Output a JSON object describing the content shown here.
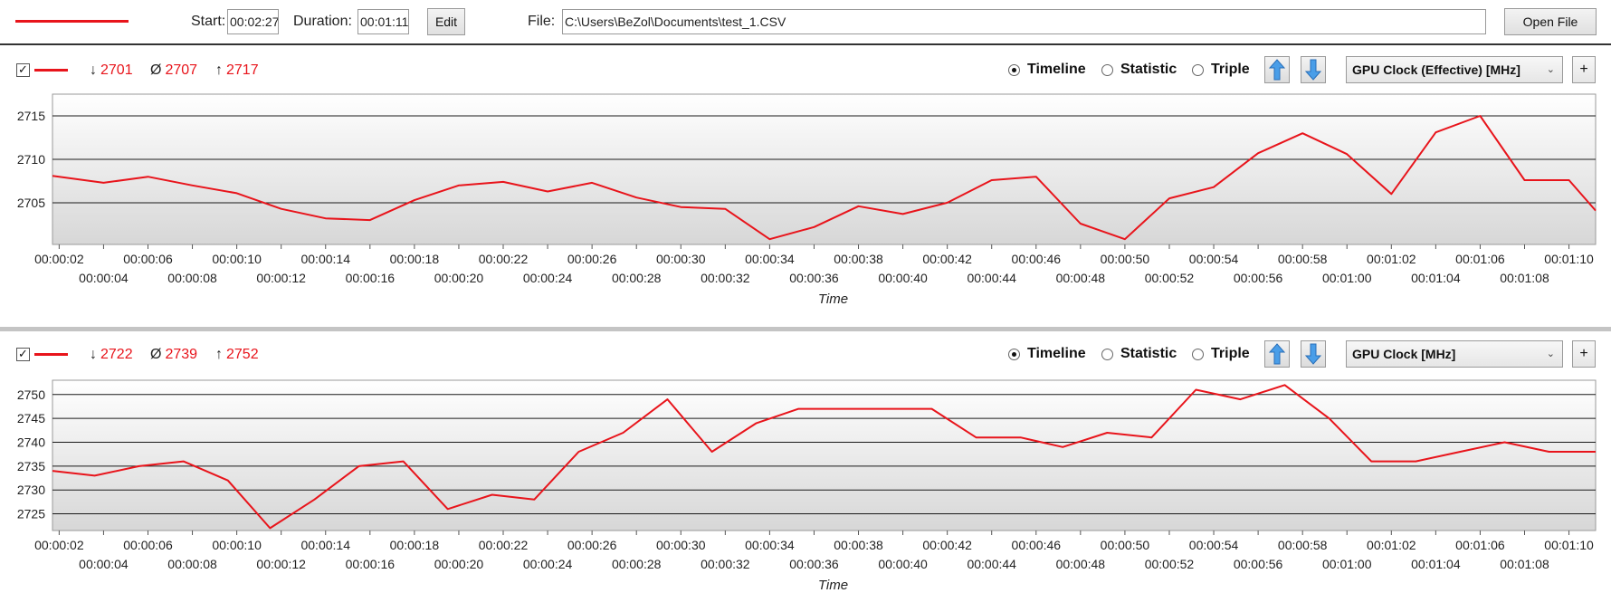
{
  "toolbar": {
    "start_label": "Start:",
    "start_value": "00:02:27",
    "duration_label": "Duration:",
    "duration_value": "00:01:11",
    "edit_label": "Edit",
    "file_label": "File:",
    "file_value": "C:\\Users\\BeZol\\Documents\\test_1.CSV",
    "open_file_label": "Open File"
  },
  "colors": {
    "series": "#e8141b",
    "grid": "#1a1a1a"
  },
  "icons": [
    "checkbox-checked-icon",
    "arrow-up-icon",
    "arrow-down-icon",
    "chevron-down-icon",
    "plus-icon"
  ],
  "panels": [
    {
      "checked": "✓",
      "min_symbol": "↓",
      "min": "2701",
      "avg_symbol": "Ø",
      "avg": "2707",
      "max_symbol": "↑",
      "max": "2717",
      "modes": [
        "Timeline",
        "Statistic",
        "Triple"
      ],
      "selected_mode": "Timeline",
      "sensor": "GPU Clock (Effective) [MHz]",
      "add_label": "+"
    },
    {
      "checked": "✓",
      "min_symbol": "↓",
      "min": "2722",
      "avg_symbol": "Ø",
      "avg": "2739",
      "max_symbol": "↑",
      "max": "2752",
      "modes": [
        "Timeline",
        "Statistic",
        "Triple"
      ],
      "selected_mode": "Timeline",
      "sensor": "GPU Clock [MHz]",
      "add_label": "+"
    }
  ],
  "chart_data": [
    {
      "type": "line",
      "xlabel": "Time",
      "ylabel": "",
      "grid": true,
      "ylim": [
        2700.2,
        2717.5
      ],
      "xlim": [
        1.7,
        71.2
      ],
      "yticks": [
        2705,
        2710,
        2715
      ],
      "xticks": [
        "00:00:02",
        "00:00:04",
        "00:00:06",
        "00:00:08",
        "00:00:10",
        "00:00:12",
        "00:00:14",
        "00:00:16",
        "00:00:18",
        "00:00:20",
        "00:00:22",
        "00:00:24",
        "00:00:26",
        "00:00:28",
        "00:00:30",
        "00:00:32",
        "00:00:34",
        "00:00:36",
        "00:00:38",
        "00:00:40",
        "00:00:42",
        "00:00:44",
        "00:00:46",
        "00:00:48",
        "00:00:50",
        "00:00:52",
        "00:00:54",
        "00:00:56",
        "00:00:58",
        "00:01:00",
        "00:01:02",
        "00:01:04",
        "00:01:06",
        "00:01:08",
        "00:01:10"
      ],
      "series": [
        {
          "x": [
            1.7,
            4,
            6,
            8,
            10,
            12,
            14,
            16,
            18,
            20,
            22,
            24,
            26,
            28,
            30,
            32,
            34,
            36,
            38,
            40,
            42,
            44,
            46,
            48,
            50,
            52,
            54,
            56,
            58,
            60,
            62,
            64,
            66,
            68,
            70,
            71.2
          ],
          "y": [
            2708.1,
            2707.3,
            2708.0,
            2707.0,
            2706.1,
            2704.3,
            2703.2,
            2703.0,
            2705.3,
            2707.0,
            2707.4,
            2706.3,
            2707.3,
            2705.6,
            2704.5,
            2704.3,
            2700.8,
            2702.2,
            2704.6,
            2703.7,
            2705.0,
            2707.6,
            2708.0,
            2702.6,
            2700.8,
            2705.5,
            2706.8,
            2710.7,
            2713.0,
            2710.6,
            2706.0,
            2713.1,
            2715.0,
            2707.6,
            2707.6,
            2704.1
          ]
        }
      ]
    },
    {
      "type": "line",
      "xlabel": "Time",
      "ylabel": "",
      "grid": true,
      "ylim": [
        2721.5,
        2753
      ],
      "xlim": [
        1.7,
        71.2
      ],
      "yticks": [
        2725,
        2730,
        2735,
        2740,
        2745,
        2750
      ],
      "xticks": [
        "00:00:02",
        "00:00:04",
        "00:00:06",
        "00:00:08",
        "00:00:10",
        "00:00:12",
        "00:00:14",
        "00:00:16",
        "00:00:18",
        "00:00:20",
        "00:00:22",
        "00:00:24",
        "00:00:26",
        "00:00:28",
        "00:00:30",
        "00:00:32",
        "00:00:34",
        "00:00:36",
        "00:00:38",
        "00:00:40",
        "00:00:42",
        "00:00:44",
        "00:00:46",
        "00:00:48",
        "00:00:50",
        "00:00:52",
        "00:00:54",
        "00:00:56",
        "00:00:58",
        "00:01:00",
        "00:01:02",
        "00:01:04",
        "00:01:06",
        "00:01:08",
        "00:01:10"
      ],
      "series": [
        {
          "x": [
            1.7,
            3.6,
            5.6,
            7.6,
            9.6,
            11.5,
            13.5,
            15.5,
            17.5,
            19.5,
            21.5,
            23.4,
            25.4,
            27.4,
            29.4,
            31.4,
            33.4,
            35.3,
            37.3,
            39.3,
            41.3,
            43.3,
            45.3,
            47.2,
            49.2,
            51.2,
            53.2,
            55.2,
            57.2,
            59.2,
            61.1,
            63.1,
            65.1,
            67.1,
            69.1,
            71.2
          ],
          "y": [
            2734,
            2733,
            2735,
            2736,
            2732,
            2722,
            2728,
            2735,
            2736,
            2726,
            2729,
            2728,
            2738,
            2742,
            2749,
            2738,
            2744,
            2747,
            2747,
            2747,
            2747,
            2741,
            2741,
            2739,
            2742,
            2741,
            2751,
            2749,
            2752,
            2745,
            2736,
            2736,
            2738,
            2740,
            2738,
            2738
          ]
        }
      ]
    }
  ]
}
